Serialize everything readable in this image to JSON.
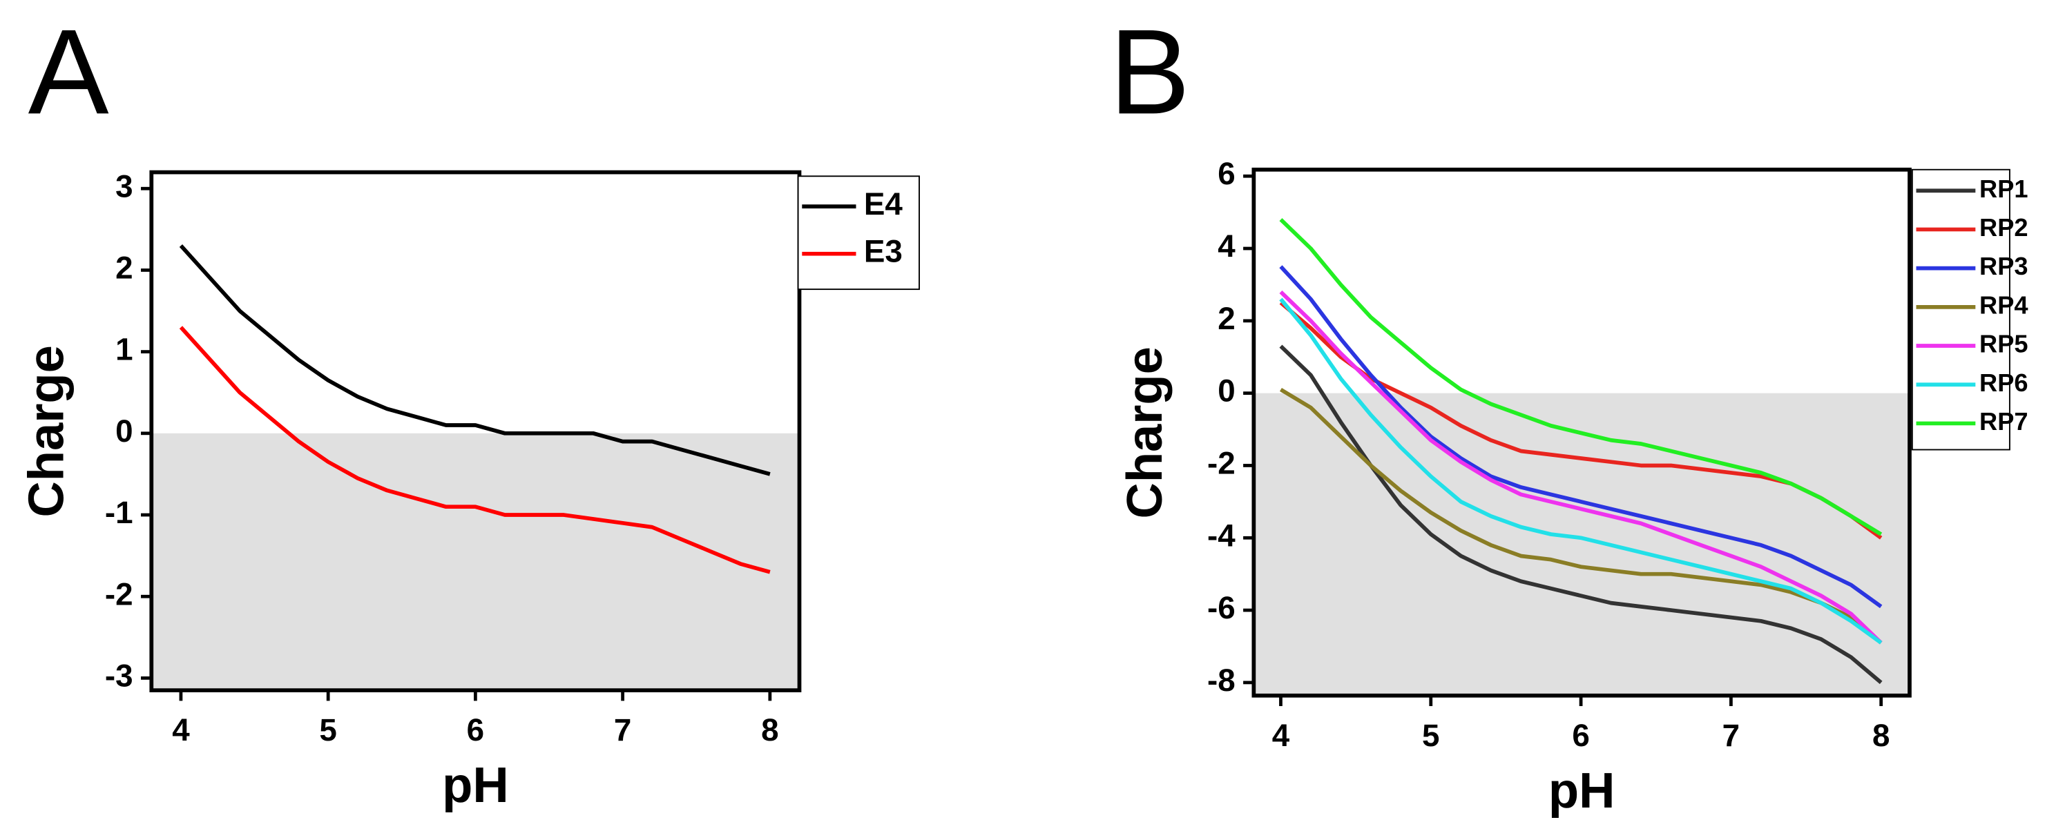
{
  "chart_data": [
    {
      "type": "line",
      "panel": "A",
      "x_label": "pH",
      "y_label": "Charge",
      "x": [
        4,
        4.2,
        4.4,
        4.6,
        4.8,
        5,
        5.2,
        5.4,
        5.6,
        5.8,
        6,
        6.2,
        6.4,
        6.6,
        6.8,
        7,
        7.2,
        7.4,
        7.6,
        7.8,
        8
      ],
      "series": [
        {
          "name": "E4",
          "color": "#000000",
          "values": [
            2.3,
            1.9,
            1.5,
            1.2,
            0.9,
            0.65,
            0.45,
            0.3,
            0.2,
            0.1,
            0.1,
            0,
            0,
            0,
            0,
            -0.1,
            -0.1,
            -0.2,
            -0.3,
            -0.4,
            -0.5
          ]
        },
        {
          "name": "E3",
          "color": "#ff0000",
          "values": [
            1.3,
            0.9,
            0.5,
            0.2,
            -0.1,
            -0.35,
            -0.55,
            -0.7,
            -0.8,
            -0.9,
            -0.9,
            -1.0,
            -1.0,
            -1.0,
            -1.05,
            -1.1,
            -1.15,
            -1.3,
            -1.45,
            -1.6,
            -1.7
          ]
        }
      ],
      "xlim": [
        3.8,
        8.2
      ],
      "xticks": [
        4,
        5,
        6,
        7,
        8
      ],
      "ylim": [
        -3.15,
        3.2
      ],
      "yticks": [
        -3,
        -2,
        -1,
        0,
        1,
        2,
        3
      ],
      "legend": "outside-right"
    },
    {
      "type": "line",
      "panel": "B",
      "x_label": "pH",
      "y_label": "Charge",
      "x": [
        4,
        4.2,
        4.4,
        4.6,
        4.8,
        5,
        5.2,
        5.4,
        5.6,
        5.8,
        6,
        6.2,
        6.4,
        6.6,
        6.8,
        7,
        7.2,
        7.4,
        7.6,
        7.8,
        8
      ],
      "series": [
        {
          "name": "RP1",
          "color": "#333333",
          "values": [
            1.3,
            0.5,
            -0.8,
            -2.0,
            -3.1,
            -3.9,
            -4.5,
            -4.9,
            -5.2,
            -5.4,
            -5.6,
            -5.8,
            -5.9,
            -6.0,
            -6.1,
            -6.2,
            -6.3,
            -6.5,
            -6.8,
            -7.3,
            -8.0
          ]
        },
        {
          "name": "RP2",
          "color": "#e8251f",
          "values": [
            2.5,
            1.8,
            1.0,
            0.4,
            0,
            -0.4,
            -0.9,
            -1.3,
            -1.6,
            -1.7,
            -1.8,
            -1.9,
            -2.0,
            -2.0,
            -2.1,
            -2.2,
            -2.3,
            -2.5,
            -2.9,
            -3.4,
            -4.0
          ]
        },
        {
          "name": "RP3",
          "color": "#2b35e0",
          "values": [
            3.5,
            2.6,
            1.5,
            0.5,
            -0.4,
            -1.2,
            -1.8,
            -2.3,
            -2.6,
            -2.8,
            -3.0,
            -3.2,
            -3.4,
            -3.6,
            -3.8,
            -4.0,
            -4.2,
            -4.5,
            -4.9,
            -5.3,
            -5.9
          ]
        },
        {
          "name": "RP4",
          "color": "#8a7d25",
          "values": [
            0.1,
            -0.4,
            -1.2,
            -2.0,
            -2.7,
            -3.3,
            -3.8,
            -4.2,
            -4.5,
            -4.6,
            -4.8,
            -4.9,
            -5.0,
            -5.0,
            -5.1,
            -5.2,
            -5.3,
            -5.5,
            -5.8,
            -6.2,
            -6.9
          ]
        },
        {
          "name": "RP5",
          "color": "#ee33ee",
          "values": [
            2.8,
            2.0,
            1.1,
            0.3,
            -0.5,
            -1.3,
            -1.9,
            -2.4,
            -2.8,
            -3.0,
            -3.2,
            -3.4,
            -3.6,
            -3.9,
            -4.2,
            -4.5,
            -4.8,
            -5.2,
            -5.6,
            -6.1,
            -6.9
          ]
        },
        {
          "name": "RP6",
          "color": "#22e0e8",
          "values": [
            2.6,
            1.6,
            0.4,
            -0.6,
            -1.5,
            -2.3,
            -3.0,
            -3.4,
            -3.7,
            -3.9,
            -4.0,
            -4.2,
            -4.4,
            -4.6,
            -4.8,
            -5.0,
            -5.2,
            -5.4,
            -5.8,
            -6.3,
            -6.9
          ]
        },
        {
          "name": "RP7",
          "color": "#22ee22",
          "values": [
            4.8,
            4.0,
            3.0,
            2.1,
            1.4,
            0.7,
            0.1,
            -0.3,
            -0.6,
            -0.9,
            -1.1,
            -1.3,
            -1.4,
            -1.6,
            -1.8,
            -2.0,
            -2.2,
            -2.5,
            -2.9,
            -3.4,
            -3.9
          ]
        }
      ],
      "xlim": [
        3.82,
        8.19
      ],
      "xticks": [
        4,
        5,
        6,
        7,
        8
      ],
      "ylim": [
        -8.36,
        6.18
      ],
      "yticks": [
        -8,
        -6,
        -4,
        -2,
        0,
        2,
        4,
        6
      ],
      "legend": "outside-right"
    }
  ]
}
